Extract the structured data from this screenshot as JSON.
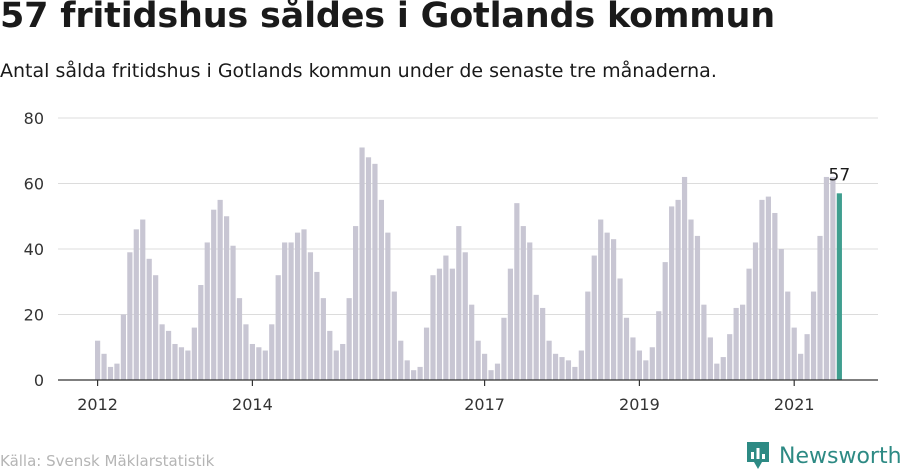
{
  "title": "57 fritidshus såldes i Gotlands kommun",
  "subtitle": "Antal sålda fritidshus i Gotlands kommun under de senaste tre månaderna.",
  "source": "Källa: Svensk Mäklarstatistik",
  "brand": "Newsworthy",
  "colors": {
    "bar": "#c8c6d3",
    "highlight": "#3f9e8f",
    "grid": "#dcdcdc",
    "axis": "#333333",
    "brand": "#2d8a84"
  },
  "chart_data": {
    "type": "bar",
    "ylim": [
      0,
      80
    ],
    "yticks": [
      0,
      20,
      40,
      60,
      80
    ],
    "x_tick_labels": [
      {
        "label": "2012",
        "index": 0
      },
      {
        "label": "2014",
        "index": 24
      },
      {
        "label": "2017",
        "index": 60
      },
      {
        "label": "2019",
        "index": 84
      },
      {
        "label": "2021",
        "index": 108
      }
    ],
    "highlight_label": "57",
    "values": [
      12,
      8,
      4,
      5,
      20,
      39,
      46,
      49,
      37,
      32,
      17,
      15,
      11,
      10,
      9,
      16,
      29,
      42,
      52,
      55,
      50,
      41,
      25,
      17,
      11,
      10,
      9,
      17,
      32,
      42,
      42,
      45,
      46,
      39,
      33,
      25,
      15,
      9,
      11,
      25,
      47,
      71,
      68,
      66,
      55,
      45,
      27,
      12,
      6,
      3,
      4,
      16,
      32,
      34,
      38,
      34,
      47,
      39,
      23,
      12,
      8,
      3,
      5,
      19,
      34,
      54,
      47,
      42,
      26,
      22,
      12,
      8,
      7,
      6,
      4,
      9,
      27,
      38,
      49,
      45,
      43,
      31,
      19,
      13,
      9,
      6,
      10,
      21,
      36,
      53,
      55,
      62,
      49,
      44,
      23,
      13,
      5,
      7,
      14,
      22,
      23,
      34,
      42,
      55,
      56,
      51,
      40,
      27,
      16,
      8,
      14,
      27,
      44,
      62,
      62,
      57
    ]
  }
}
